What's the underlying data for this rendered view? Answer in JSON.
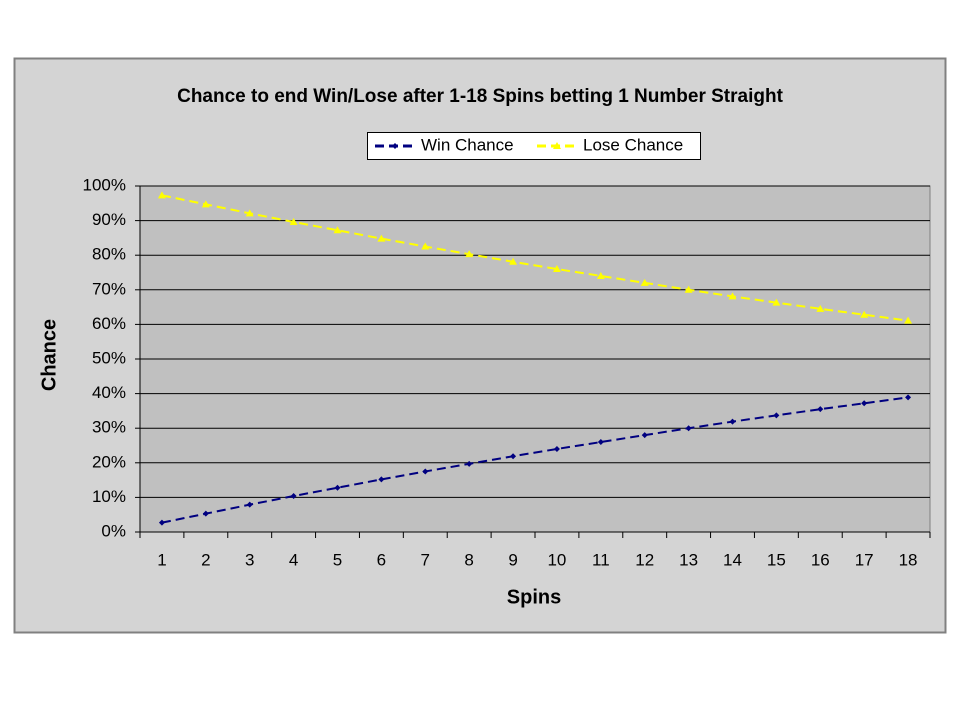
{
  "chart_data": {
    "type": "line",
    "title": "Chance to end Win/Lose after 1-18 Spins betting 1 Number Straight",
    "x_label": "Spins",
    "y_label": "Chance",
    "categories": [
      "1",
      "2",
      "3",
      "4",
      "5",
      "6",
      "7",
      "8",
      "9",
      "10",
      "11",
      "12",
      "13",
      "14",
      "15",
      "16",
      "17",
      "18"
    ],
    "series": [
      {
        "name": "Win Chance",
        "color": "#000080",
        "marker": "diamond",
        "values": [
          2.7,
          5.3,
          7.9,
          10.4,
          12.8,
          15.2,
          17.5,
          19.7,
          21.9,
          24.0,
          26.0,
          28.0,
          30.0,
          31.9,
          33.7,
          35.5,
          37.2,
          38.9
        ]
      },
      {
        "name": "Lose Chance",
        "color": "#ffff00",
        "marker": "triangle",
        "values": [
          97.3,
          94.7,
          92.1,
          89.6,
          87.2,
          84.8,
          82.5,
          80.3,
          78.1,
          76.0,
          74.0,
          72.0,
          70.0,
          68.1,
          66.3,
          64.5,
          62.8,
          61.1
        ]
      }
    ],
    "ylim": [
      0,
      100
    ],
    "yticks": [
      {
        "value": 0,
        "label": "0%"
      },
      {
        "value": 10,
        "label": "10%"
      },
      {
        "value": 20,
        "label": "20%"
      },
      {
        "value": 30,
        "label": "30%"
      },
      {
        "value": 40,
        "label": "40%"
      },
      {
        "value": 50,
        "label": "50%"
      },
      {
        "value": 60,
        "label": "60%"
      },
      {
        "value": 70,
        "label": "70%"
      },
      {
        "value": 80,
        "label": "80%"
      },
      {
        "value": 90,
        "label": "90%"
      },
      {
        "value": 100,
        "label": "100%"
      }
    ],
    "grid": true,
    "legend": "top"
  }
}
